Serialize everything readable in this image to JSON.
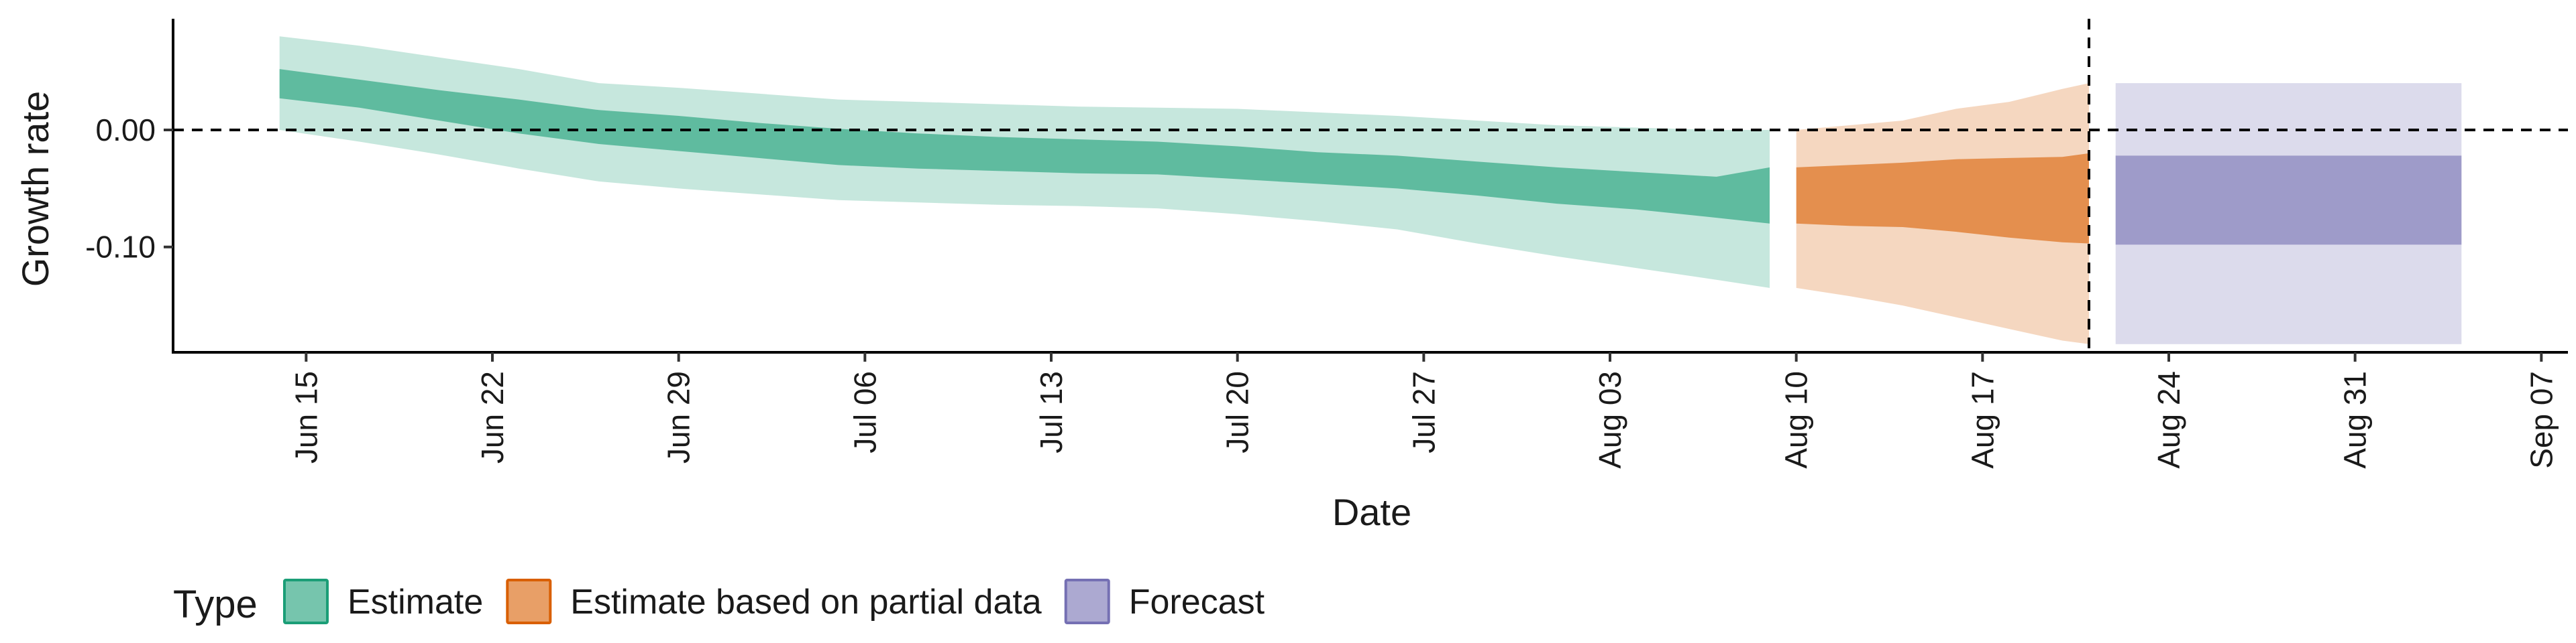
{
  "chart_data": {
    "type": "area",
    "xlabel": "Date",
    "ylabel": "Growth rate",
    "x_range": [
      "2020-06-10",
      "2020-09-08"
    ],
    "ylim": [
      -0.19,
      0.095
    ],
    "y_ticks": [
      0.0,
      -0.1
    ],
    "y_tick_labels": [
      "0.00",
      "-0.10"
    ],
    "x_ticks": [
      "2020-06-15",
      "2020-06-22",
      "2020-06-29",
      "2020-07-06",
      "2020-07-13",
      "2020-07-20",
      "2020-07-27",
      "2020-08-03",
      "2020-08-10",
      "2020-08-17",
      "2020-08-24",
      "2020-08-31",
      "2020-09-07"
    ],
    "x_tick_labels": [
      "Jun 15",
      "Jun 22",
      "Jun 29",
      "Jul 06",
      "Jul 13",
      "Jul 20",
      "Jul 27",
      "Aug 03",
      "Aug 10",
      "Aug 17",
      "Aug 24",
      "Aug 31",
      "Sep 07"
    ],
    "reference_lines": {
      "horizontal_y": 0.0,
      "vertical_date": "2020-08-21"
    },
    "grid": false,
    "legend": {
      "title": "Type",
      "position": "bottom"
    },
    "series": [
      {
        "name": "Estimate",
        "color": "#1b9e77",
        "dates": [
          "2020-06-14",
          "2020-06-17",
          "2020-06-20",
          "2020-06-23",
          "2020-06-26",
          "2020-06-29",
          "2020-07-02",
          "2020-07-05",
          "2020-07-08",
          "2020-07-11",
          "2020-07-14",
          "2020-07-17",
          "2020-07-20",
          "2020-07-23",
          "2020-07-26",
          "2020-07-29",
          "2020-08-01",
          "2020-08-04",
          "2020-08-07",
          "2020-08-09"
        ],
        "outer_upper": [
          0.08,
          0.072,
          0.062,
          0.052,
          0.04,
          0.036,
          0.031,
          0.026,
          0.024,
          0.022,
          0.02,
          0.019,
          0.018,
          0.015,
          0.012,
          0.008,
          0.004,
          0.002,
          0.0,
          0.0
        ],
        "inner_upper": [
          0.052,
          0.043,
          0.034,
          0.026,
          0.017,
          0.012,
          0.006,
          0.001,
          -0.003,
          -0.006,
          -0.008,
          -0.01,
          -0.014,
          -0.019,
          -0.022,
          -0.027,
          -0.032,
          -0.036,
          -0.04,
          -0.032
        ],
        "inner_lower": [
          0.027,
          0.019,
          0.008,
          -0.003,
          -0.012,
          -0.018,
          -0.024,
          -0.03,
          -0.033,
          -0.035,
          -0.037,
          -0.038,
          -0.042,
          -0.046,
          -0.05,
          -0.056,
          -0.063,
          -0.068,
          -0.075,
          -0.08
        ],
        "outer_lower": [
          0.0,
          -0.01,
          -0.021,
          -0.033,
          -0.044,
          -0.05,
          -0.055,
          -0.06,
          -0.062,
          -0.064,
          -0.065,
          -0.067,
          -0.072,
          -0.078,
          -0.085,
          -0.097,
          -0.108,
          -0.118,
          -0.128,
          -0.135
        ]
      },
      {
        "name": "Estimate based on partial data",
        "color": "#d95f02",
        "dates": [
          "2020-08-10",
          "2020-08-12",
          "2020-08-14",
          "2020-08-16",
          "2020-08-18",
          "2020-08-20",
          "2020-08-21"
        ],
        "outer_upper": [
          0.0,
          0.004,
          0.008,
          0.018,
          0.024,
          0.035,
          0.04
        ],
        "inner_upper": [
          -0.032,
          -0.03,
          -0.028,
          -0.025,
          -0.024,
          -0.023,
          -0.02
        ],
        "inner_lower": [
          -0.08,
          -0.082,
          -0.083,
          -0.087,
          -0.092,
          -0.096,
          -0.097
        ],
        "outer_lower": [
          -0.135,
          -0.142,
          -0.15,
          -0.16,
          -0.17,
          -0.18,
          -0.183
        ]
      },
      {
        "name": "Forecast",
        "color": "#7570b3",
        "dates": [
          "2020-08-22",
          "2020-09-04"
        ],
        "outer_upper": [
          0.04,
          0.04
        ],
        "inner_upper": [
          -0.022,
          -0.022
        ],
        "inner_lower": [
          -0.098,
          -0.098
        ],
        "outer_lower": [
          -0.183,
          -0.183
        ]
      }
    ]
  }
}
